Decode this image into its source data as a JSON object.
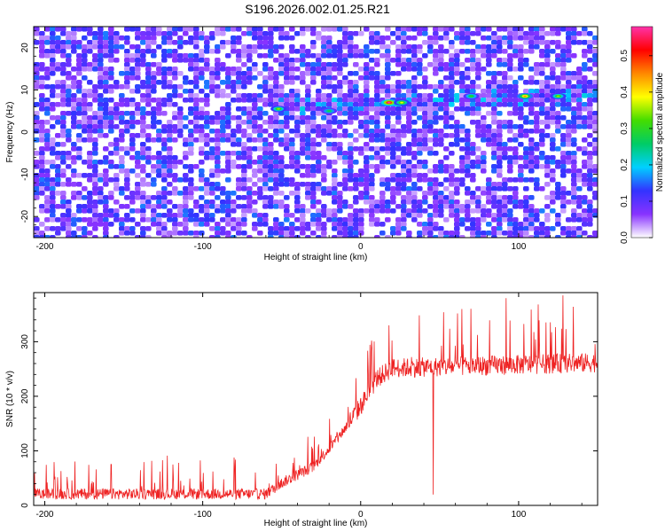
{
  "title": "S196.2026.002.01.25.R21",
  "colors": {
    "series_line": "#ee2222",
    "axis": "#000000",
    "background": "#ffffff",
    "ridge_core": "#ff0000",
    "ridge_halo": "#00aa00"
  },
  "chart_data": [
    {
      "type": "heatmap",
      "name": "spectrogram",
      "xlabel": "Height of straight line (km)",
      "ylabel": "Frequency (Hz)",
      "xlim": [
        -207,
        150
      ],
      "ylim": [
        -25,
        25
      ],
      "xticks": [
        -200,
        -100,
        0,
        100
      ],
      "xtick_labels": [
        "-200",
        "-100",
        "0",
        "100"
      ],
      "yticks": [
        -20,
        -10,
        0,
        10,
        20
      ],
      "ytick_labels": [
        "-20",
        "-10",
        "0",
        "10",
        "20"
      ],
      "value_unit": "Normalized spectral amplitude",
      "ridge": {
        "start_km": -55,
        "frequency_start_hz": 6,
        "frequency_end_hz": 9,
        "peak_points": [
          {
            "x_km": -52,
            "freq_hz": 5.5,
            "amplitude": 0.35
          },
          {
            "x_km": -20,
            "freq_hz": 5,
            "amplitude": 0.28
          },
          {
            "x_km": 18,
            "freq_hz": 7,
            "amplitude": 0.58
          },
          {
            "x_km": 26,
            "freq_hz": 7,
            "amplitude": 0.38
          },
          {
            "x_km": 70,
            "freq_hz": 8.5,
            "amplitude": 0.3
          },
          {
            "x_km": 104,
            "freq_hz": 8.5,
            "amplitude": 0.45
          },
          {
            "x_km": 125,
            "freq_hz": 8.5,
            "amplitude": 0.35
          }
        ]
      },
      "colorbar": {
        "label": "Normalized spectral amplitude",
        "range": [
          0,
          0.58
        ],
        "ticks": [
          0.0,
          0.1,
          0.2,
          0.3,
          0.4,
          0.5
        ],
        "tick_labels": [
          "0.0",
          "0.1",
          "0.2",
          "0.3",
          "0.4",
          "0.5"
        ],
        "stops": [
          "#ffffff",
          "#8833ff",
          "#3333ff",
          "#00d0ff",
          "#00cc66",
          "#44dd00",
          "#ffff00",
          "#ff8800",
          "#ff0000",
          "#ff33aa"
        ]
      }
    },
    {
      "type": "line",
      "name": "snr",
      "xlabel": "Height of straight line (km)",
      "ylabel": "SNR (10 * v/v)",
      "xlim": [
        -207,
        150
      ],
      "ylim": [
        0,
        390
      ],
      "xticks": [
        -200,
        -100,
        0,
        100
      ],
      "xtick_labels": [
        "-200",
        "-100",
        "0",
        "100"
      ],
      "yticks": [
        0,
        100,
        200,
        300
      ],
      "ytick_labels": [
        "0",
        "100",
        "200",
        "300"
      ],
      "series": [
        {
          "name": "SNR",
          "trend_points": [
            [
              -207,
              20
            ],
            [
              -60,
              20
            ],
            [
              -50,
              40
            ],
            [
              -30,
              70
            ],
            [
              -15,
              120
            ],
            [
              0,
              180
            ],
            [
              10,
              230
            ],
            [
              20,
              250
            ],
            [
              150,
              260
            ]
          ],
          "noise_amplitude": 20,
          "notable_points": [
            {
              "x_km": -158,
              "snr": 75
            },
            {
              "x_km": 18,
              "snr": 330
            },
            {
              "x_km": 46,
              "snr": 20
            },
            {
              "x_km": 64,
              "snr": 360
            },
            {
              "x_km": 92,
              "snr": 380
            },
            {
              "x_km": 128,
              "snr": 385
            }
          ]
        }
      ]
    }
  ]
}
